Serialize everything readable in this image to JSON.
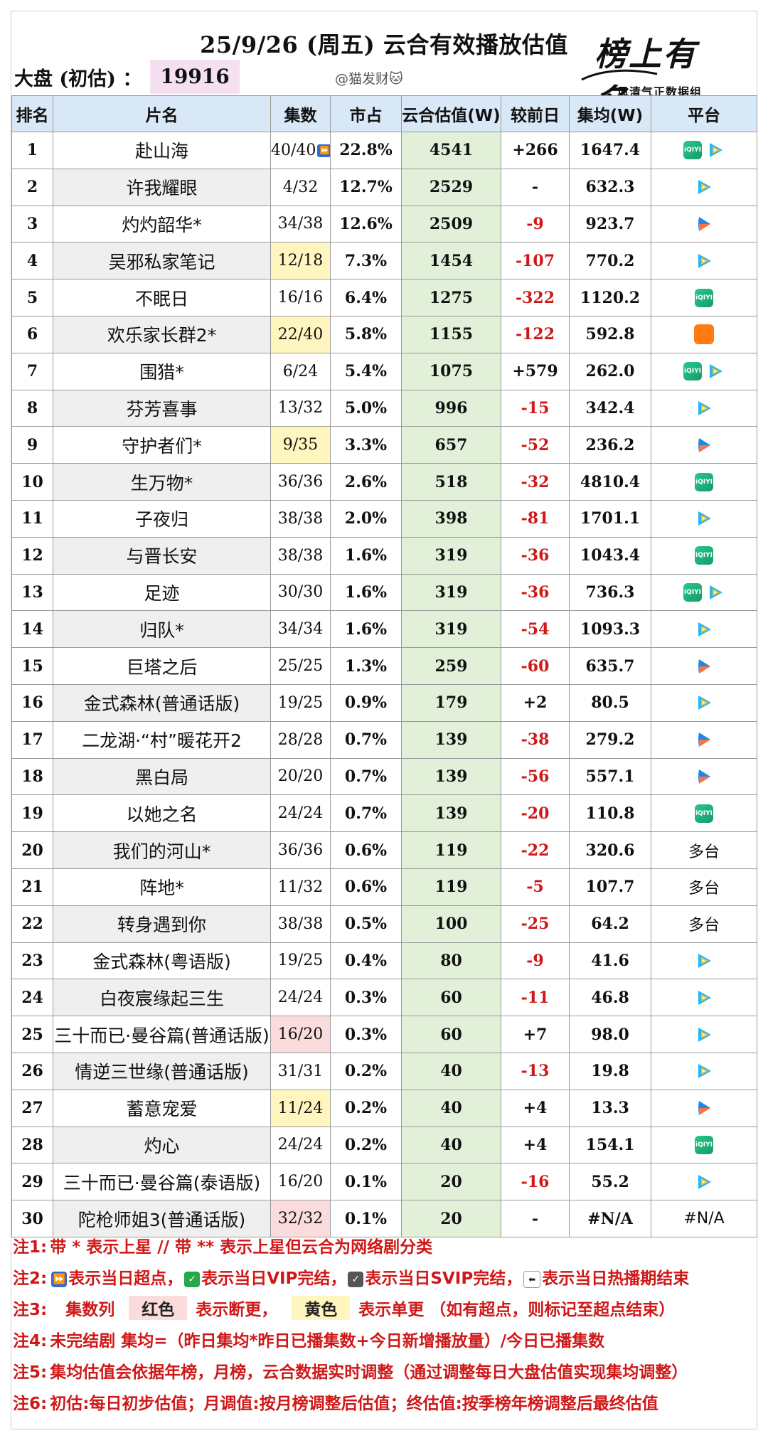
{
  "header": {
    "title": "25/9/26 (周五) 云合有效播放估值",
    "dapan_label": "大盘 (初估) ：",
    "dapan_value": "19916",
    "handle": "@猫发财🐱",
    "logo_main": "榜上有名",
    "logo_sub": "风清气正数据组"
  },
  "table": {
    "headers": [
      "排名",
      "片名",
      "集数",
      "市占",
      "云合估值(W)",
      "较前日",
      "集均(W)",
      "平台"
    ],
    "rows": [
      {
        "rank": "1",
        "name": "赴山海",
        "eps": "40/40",
        "eps_mark": "⏩",
        "eps_bg": "",
        "share": "22.8%",
        "value": "4541",
        "diff": "+266",
        "avg": "1647.4",
        "platforms": [
          "iqiyi",
          "tencent"
        ]
      },
      {
        "rank": "2",
        "name": "许我耀眼",
        "eps": "4/32",
        "eps_bg": "",
        "share": "12.7%",
        "value": "2529",
        "diff": "-",
        "avg": "632.3",
        "platforms": [
          "tencent"
        ]
      },
      {
        "rank": "3",
        "name": "灼灼韶华*",
        "eps": "34/38",
        "eps_bg": "",
        "share": "12.6%",
        "value": "2509",
        "diff": "-9",
        "avg": "923.7",
        "platforms": [
          "youku"
        ]
      },
      {
        "rank": "4",
        "name": "吴邪私家笔记",
        "eps": "12/18",
        "eps_bg": "yellow",
        "share": "7.3%",
        "value": "1454",
        "diff": "-107",
        "avg": "770.2",
        "platforms": [
          "tencent"
        ]
      },
      {
        "rank": "5",
        "name": "不眠日",
        "eps": "16/16",
        "eps_bg": "",
        "share": "6.4%",
        "value": "1275",
        "diff": "-322",
        "avg": "1120.2",
        "platforms": [
          "iqiyi"
        ]
      },
      {
        "rank": "6",
        "name": "欢乐家长群2*",
        "eps": "22/40",
        "eps_bg": "yellow",
        "share": "5.8%",
        "value": "1155",
        "diff": "-122",
        "avg": "592.8",
        "platforms": [
          "mango"
        ]
      },
      {
        "rank": "7",
        "name": "围猎*",
        "eps": "6/24",
        "eps_bg": "",
        "share": "5.4%",
        "value": "1075",
        "diff": "+579",
        "avg": "262.0",
        "platforms": [
          "iqiyi",
          "tencent"
        ]
      },
      {
        "rank": "8",
        "name": "芬芳喜事",
        "eps": "13/32",
        "eps_bg": "",
        "share": "5.0%",
        "value": "996",
        "diff": "-15",
        "avg": "342.4",
        "platforms": [
          "tencent"
        ]
      },
      {
        "rank": "9",
        "name": "守护者们*",
        "eps": "9/35",
        "eps_bg": "yellow",
        "share": "3.3%",
        "value": "657",
        "diff": "-52",
        "avg": "236.2",
        "platforms": [
          "youku"
        ]
      },
      {
        "rank": "10",
        "name": "生万物*",
        "eps": "36/36",
        "eps_bg": "",
        "share": "2.6%",
        "value": "518",
        "diff": "-32",
        "avg": "4810.4",
        "platforms": [
          "iqiyi"
        ]
      },
      {
        "rank": "11",
        "name": "子夜归",
        "eps": "38/38",
        "eps_bg": "",
        "share": "2.0%",
        "value": "398",
        "diff": "-81",
        "avg": "1701.1",
        "platforms": [
          "tencent"
        ]
      },
      {
        "rank": "12",
        "name": "与晋长安",
        "eps": "38/38",
        "eps_bg": "",
        "share": "1.6%",
        "value": "319",
        "diff": "-36",
        "avg": "1043.4",
        "platforms": [
          "iqiyi"
        ]
      },
      {
        "rank": "13",
        "name": "足迹",
        "eps": "30/30",
        "eps_bg": "",
        "share": "1.6%",
        "value": "319",
        "diff": "-36",
        "avg": "736.3",
        "platforms": [
          "iqiyi",
          "tencent"
        ]
      },
      {
        "rank": "14",
        "name": "归队*",
        "eps": "34/34",
        "eps_bg": "",
        "share": "1.6%",
        "value": "319",
        "diff": "-54",
        "avg": "1093.3",
        "platforms": [
          "tencent"
        ]
      },
      {
        "rank": "15",
        "name": "巨塔之后",
        "eps": "25/25",
        "eps_bg": "",
        "share": "1.3%",
        "value": "259",
        "diff": "-60",
        "avg": "635.7",
        "platforms": [
          "youku"
        ]
      },
      {
        "rank": "16",
        "name": "金式森林(普通话版)",
        "eps": "19/25",
        "eps_bg": "",
        "share": "0.9%",
        "value": "179",
        "diff": "+2",
        "avg": "80.5",
        "platforms": [
          "tencent"
        ]
      },
      {
        "rank": "17",
        "name": "二龙湖·“村”暖花开2",
        "eps": "28/28",
        "eps_bg": "",
        "share": "0.7%",
        "value": "139",
        "diff": "-38",
        "avg": "279.2",
        "platforms": [
          "youku"
        ]
      },
      {
        "rank": "18",
        "name": "黑白局",
        "eps": "20/20",
        "eps_bg": "",
        "share": "0.7%",
        "value": "139",
        "diff": "-56",
        "avg": "557.1",
        "platforms": [
          "youku"
        ]
      },
      {
        "rank": "19",
        "name": "以她之名",
        "eps": "24/24",
        "eps_bg": "",
        "share": "0.7%",
        "value": "139",
        "diff": "-20",
        "avg": "110.8",
        "platforms": [
          "iqiyi"
        ]
      },
      {
        "rank": "20",
        "name": "我们的河山*",
        "eps": "36/36",
        "eps_bg": "",
        "share": "0.6%",
        "value": "119",
        "diff": "-22",
        "avg": "320.6",
        "platforms": [
          "multi"
        ]
      },
      {
        "rank": "21",
        "name": "阵地*",
        "eps": "11/32",
        "eps_bg": "",
        "share": "0.6%",
        "value": "119",
        "diff": "-5",
        "avg": "107.7",
        "platforms": [
          "multi"
        ]
      },
      {
        "rank": "22",
        "name": "转身遇到你",
        "eps": "38/38",
        "eps_bg": "",
        "share": "0.5%",
        "value": "100",
        "diff": "-25",
        "avg": "64.2",
        "platforms": [
          "multi"
        ]
      },
      {
        "rank": "23",
        "name": "金式森林(粤语版)",
        "eps": "19/25",
        "eps_bg": "",
        "share": "0.4%",
        "value": "80",
        "diff": "-9",
        "avg": "41.6",
        "platforms": [
          "tencent"
        ]
      },
      {
        "rank": "24",
        "name": "白夜宸缘起三生",
        "eps": "24/24",
        "eps_bg": "",
        "share": "0.3%",
        "value": "60",
        "diff": "-11",
        "avg": "46.8",
        "platforms": [
          "tencent"
        ]
      },
      {
        "rank": "25",
        "name": "三十而已·曼谷篇(普通话版)",
        "eps": "16/20",
        "eps_bg": "red",
        "share": "0.3%",
        "value": "60",
        "diff": "+7",
        "avg": "98.0",
        "platforms": [
          "tencent"
        ]
      },
      {
        "rank": "26",
        "name": "情逆三世缘(普通话版)",
        "eps": "31/31",
        "eps_bg": "",
        "share": "0.2%",
        "value": "40",
        "diff": "-13",
        "avg": "19.8",
        "platforms": [
          "tencent"
        ]
      },
      {
        "rank": "27",
        "name": "蓄意宠爱",
        "eps": "11/24",
        "eps_bg": "yellow",
        "share": "0.2%",
        "value": "40",
        "diff": "+4",
        "avg": "13.3",
        "platforms": [
          "youku"
        ]
      },
      {
        "rank": "28",
        "name": "灼心",
        "eps": "24/24",
        "eps_bg": "",
        "share": "0.2%",
        "value": "40",
        "diff": "+4",
        "avg": "154.1",
        "platforms": [
          "iqiyi"
        ]
      },
      {
        "rank": "29",
        "name": "三十而已·曼谷篇(泰语版)",
        "eps": "16/20",
        "eps_bg": "",
        "share": "0.1%",
        "value": "20",
        "diff": "-16",
        "avg": "55.2",
        "platforms": [
          "tencent"
        ]
      },
      {
        "rank": "30",
        "name": "陀枪师姐3(普通话版)",
        "eps": "32/32",
        "eps_bg": "red",
        "share": "0.1%",
        "value": "20",
        "diff": "-",
        "avg": "#N/A",
        "platforms": [
          "na"
        ]
      }
    ]
  },
  "platform_labels": {
    "multi": "多台",
    "na": "#N/A",
    "iqiyi": "iQIYI"
  },
  "notes": {
    "n1": {
      "label": "注1:",
      "text": "带 * 表示上星 // 带 ** 表示上星但云合为网络剧分类"
    },
    "n2": {
      "label": "注2:",
      "a": "表示当日超点，",
      "b": "表示当日VIP完结，",
      "c": "表示当日SVIP完结，",
      "d": "表示当日热播期结束"
    },
    "n3": {
      "label": "注3:",
      "col": "集数列",
      "red": "红色",
      "red_desc": "表示断更，",
      "yellow": "黄色",
      "yellow_desc": "表示单更 （如有超点，则标记至超点结束）"
    },
    "n4": {
      "label": "注4:",
      "text": "未完结剧 集均=（昨日集均*昨日已播集数+今日新增播放量）/今日已播集数"
    },
    "n5": {
      "label": "注5:",
      "text": "集均估值会依据年榜，月榜，云合数据实时调整（通过调整每日大盘估值实现集均调整）"
    },
    "n6": {
      "label": "注6:",
      "text": "初估:每日初步估值；月调值:按月榜调整后估值；终估值:按季榜年榜调整后最终估值"
    }
  },
  "colors": {
    "header_bg": "#d8e8f6",
    "value_col_bg": "#e2f0d9",
    "negative": "#d01818",
    "note_red": "#d01818",
    "yellow_mark": "#fff5bf",
    "red_mark": "#fbdcdc"
  }
}
